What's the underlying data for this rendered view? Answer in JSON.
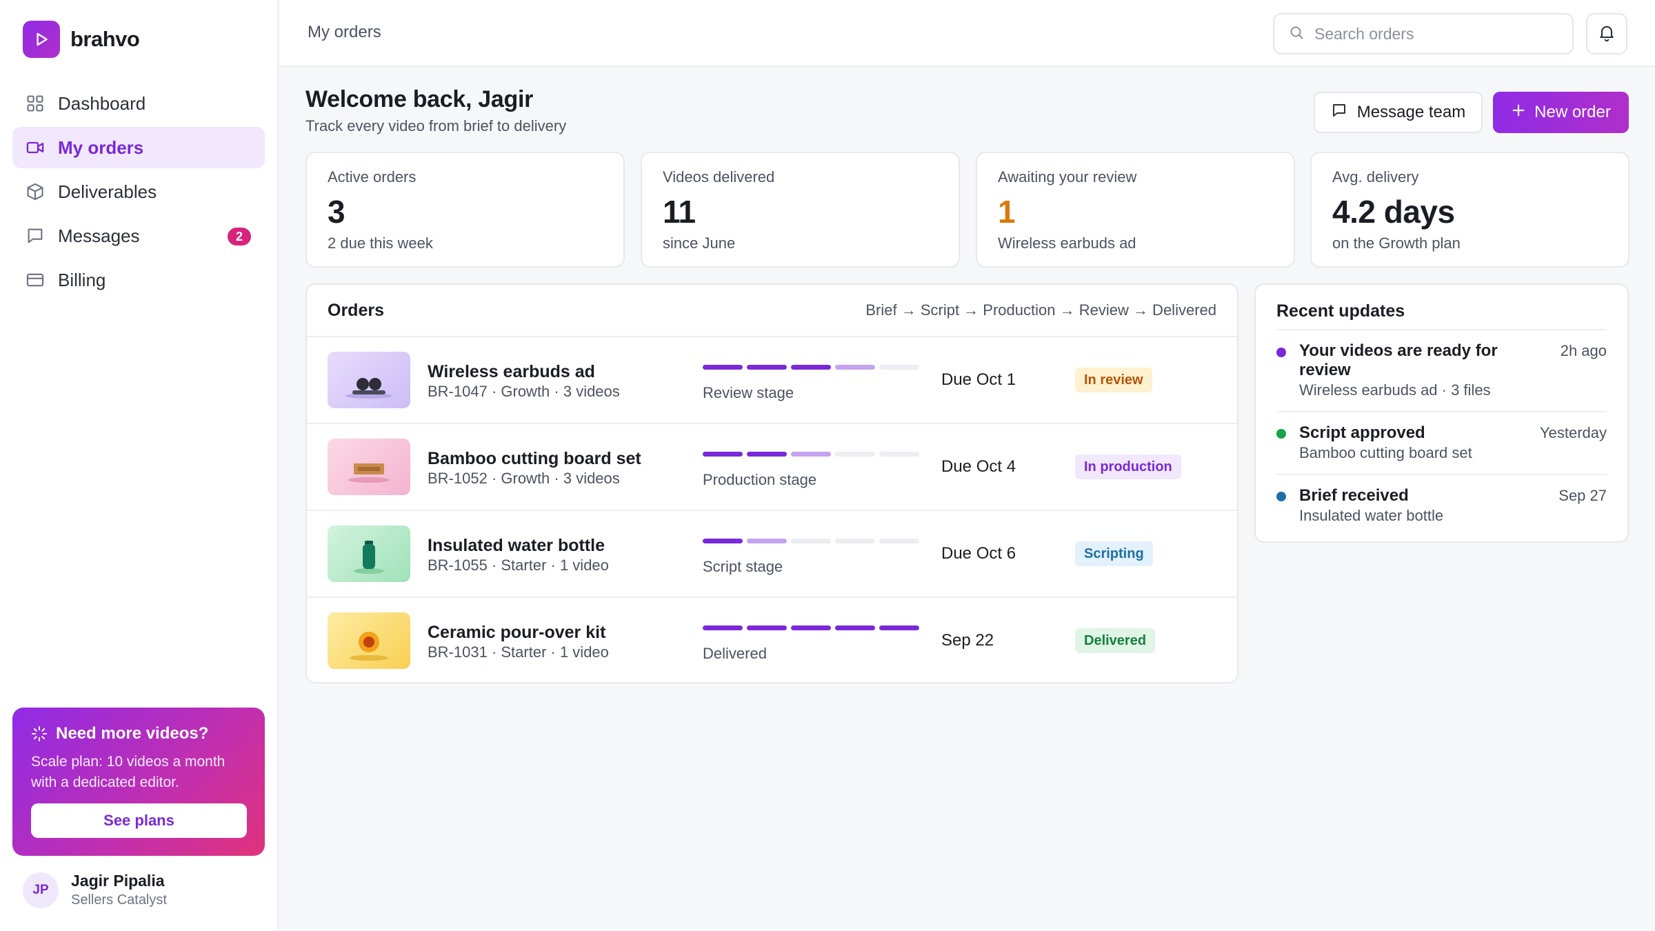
{
  "brand": {
    "name": "brahvo"
  },
  "nav": {
    "items": [
      {
        "label": "Dashboard"
      },
      {
        "label": "My orders"
      },
      {
        "label": "Deliverables"
      },
      {
        "label": "Messages",
        "badge": "2"
      },
      {
        "label": "Billing"
      }
    ]
  },
  "promo": {
    "title": "Need more videos?",
    "text": "Scale plan: 10 videos a month with a dedicated editor.",
    "button": "See plans"
  },
  "user": {
    "initials": "JP",
    "name": "Jagir Pipalia",
    "org": "Sellers Catalyst"
  },
  "topbar": {
    "breadcrumb": "My orders",
    "search_placeholder": "Search orders"
  },
  "header": {
    "title": "Welcome back, Jagir",
    "subtitle": "Track every video from brief to delivery",
    "message_button": "Message team",
    "new_order_button": "New order"
  },
  "stats": [
    {
      "label": "Active orders",
      "value": "3",
      "sub": "2 due this week"
    },
    {
      "label": "Videos delivered",
      "value": "11",
      "sub": "since June"
    },
    {
      "label": "Awaiting your review",
      "value": "1",
      "sub": "Wireless earbuds ad"
    },
    {
      "label": "Avg. delivery",
      "value": "4.2 days",
      "sub": "on the Growth plan"
    }
  ],
  "orders": {
    "title": "Orders",
    "pipeline": "Brief → Script → Production → Review → Delivered",
    "rows": [
      {
        "name": "Wireless earbuds ad",
        "meta": "BR-1047 · Growth · 3 videos",
        "stage": "Review stage",
        "due": "Due Oct 1",
        "status": "In review",
        "status_color": "#b45309",
        "status_bg": "#fdf1cf",
        "progress_done": 3,
        "progress_active": 1,
        "thumb": "earbuds-thumbnail"
      },
      {
        "name": "Bamboo cutting board set",
        "meta": "BR-1052 · Growth · 3 videos",
        "stage": "Production stage",
        "due": "Due Oct 4",
        "status": "In production",
        "status_color": "#7a28d9",
        "status_bg": "#f1e8fd",
        "progress_done": 2,
        "progress_active": 1,
        "thumb": "cutting-board-thumbnail"
      },
      {
        "name": "Insulated water bottle",
        "meta": "BR-1055 · Starter · 1 video",
        "stage": "Script stage",
        "due": "Due Oct 6",
        "status": "Scripting",
        "status_color": "#1d6fa5",
        "status_bg": "#e2f1fb",
        "progress_done": 1,
        "progress_active": 1,
        "thumb": "water-bottle-thumbnail"
      },
      {
        "name": "Ceramic pour-over kit",
        "meta": "BR-1031 · Starter · 1 video",
        "stage": "Delivered",
        "due": "Sep 22",
        "status": "Delivered",
        "status_color": "#15803d",
        "status_bg": "#e1f5e7",
        "progress_done": 5,
        "progress_active": 0,
        "thumb": "pour-over-thumbnail"
      }
    ]
  },
  "updates": {
    "title": "Recent updates",
    "items": [
      {
        "title": "Your videos are ready for review",
        "sub": "Wireless earbuds ad · 3 files",
        "time": "2h ago",
        "dot_color": "#7a28d9"
      },
      {
        "title": "Script approved",
        "sub": "Bamboo cutting board set",
        "time": "Yesterday",
        "dot_color": "#16a34a"
      },
      {
        "title": "Brief received",
        "sub": "Insulated water bottle",
        "time": "Sep 27",
        "dot_color": "#1d6fa5"
      }
    ]
  },
  "colors": {
    "accent": "#8f2be6",
    "accent_light": "#f1e8fd",
    "progress_done": "#7a28d9",
    "progress_active": "#c4a4ef",
    "progress_empty": "#ededf2"
  }
}
